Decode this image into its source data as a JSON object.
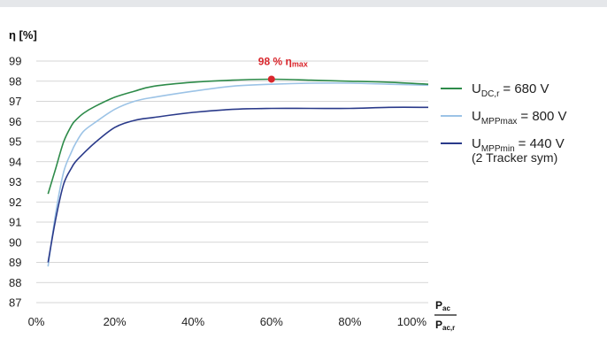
{
  "chart_data": {
    "type": "line",
    "ylabel": "η [%]",
    "xlabel_num": "P",
    "xlabel_num_sub": "ac",
    "xlabel_den": "P",
    "xlabel_den_sub": "ac,r",
    "ylim": [
      87,
      99
    ],
    "xlim": [
      0,
      100
    ],
    "yticks": [
      "87",
      "88",
      "89",
      "90",
      "91",
      "92",
      "93",
      "94",
      "95",
      "96",
      "97",
      "98",
      "99"
    ],
    "xticks": [
      {
        "value": 0,
        "label": "0%"
      },
      {
        "value": 20,
        "label": "20%"
      },
      {
        "value": 40,
        "label": "40%"
      },
      {
        "value": 60,
        "label": "60%"
      },
      {
        "value": 80,
        "label": "80%"
      },
      {
        "value": 100,
        "label": "100%"
      }
    ],
    "grid": true,
    "legend_position": "right",
    "annotation": {
      "x": 60,
      "y": 98.1,
      "text_main": "98 % η",
      "text_sub": "max",
      "color": "#d9262c"
    },
    "series": [
      {
        "name_main": "U",
        "name_sub": "DC,r",
        "name_rest": "= 680 V",
        "color": "#2e8b4a",
        "points": [
          [
            3,
            92.4
          ],
          [
            5,
            93.7
          ],
          [
            7,
            95.0
          ],
          [
            9,
            95.8
          ],
          [
            10,
            96.05
          ],
          [
            12,
            96.4
          ],
          [
            15,
            96.75
          ],
          [
            20,
            97.2
          ],
          [
            25,
            97.5
          ],
          [
            30,
            97.75
          ],
          [
            40,
            97.95
          ],
          [
            50,
            98.05
          ],
          [
            60,
            98.1
          ],
          [
            70,
            98.05
          ],
          [
            80,
            98.0
          ],
          [
            90,
            97.95
          ],
          [
            100,
            97.85
          ]
        ]
      },
      {
        "name_main": "U",
        "name_sub": "MPPmax",
        "name_rest": "= 800 V",
        "color": "#9cc3e6",
        "points": [
          [
            3,
            88.8
          ],
          [
            5,
            91.5
          ],
          [
            7,
            93.5
          ],
          [
            9,
            94.5
          ],
          [
            10,
            94.9
          ],
          [
            12,
            95.5
          ],
          [
            15,
            95.95
          ],
          [
            20,
            96.6
          ],
          [
            25,
            97.0
          ],
          [
            30,
            97.2
          ],
          [
            40,
            97.5
          ],
          [
            50,
            97.75
          ],
          [
            60,
            97.85
          ],
          [
            70,
            97.9
          ],
          [
            80,
            97.9
          ],
          [
            90,
            97.85
          ],
          [
            100,
            97.8
          ]
        ]
      },
      {
        "name_main": "U",
        "name_sub": "MPPmin",
        "name_rest": "= 440 V",
        "name_extra": "(2 Tracker sym)",
        "color": "#2a3a8a",
        "points": [
          [
            3,
            89.0
          ],
          [
            5,
            91.2
          ],
          [
            7,
            92.9
          ],
          [
            9,
            93.7
          ],
          [
            10,
            94.0
          ],
          [
            12,
            94.4
          ],
          [
            15,
            94.95
          ],
          [
            20,
            95.7
          ],
          [
            25,
            96.05
          ],
          [
            30,
            96.2
          ],
          [
            40,
            96.45
          ],
          [
            50,
            96.6
          ],
          [
            60,
            96.65
          ],
          [
            70,
            96.65
          ],
          [
            80,
            96.65
          ],
          [
            90,
            96.7
          ],
          [
            100,
            96.7
          ]
        ]
      }
    ]
  }
}
